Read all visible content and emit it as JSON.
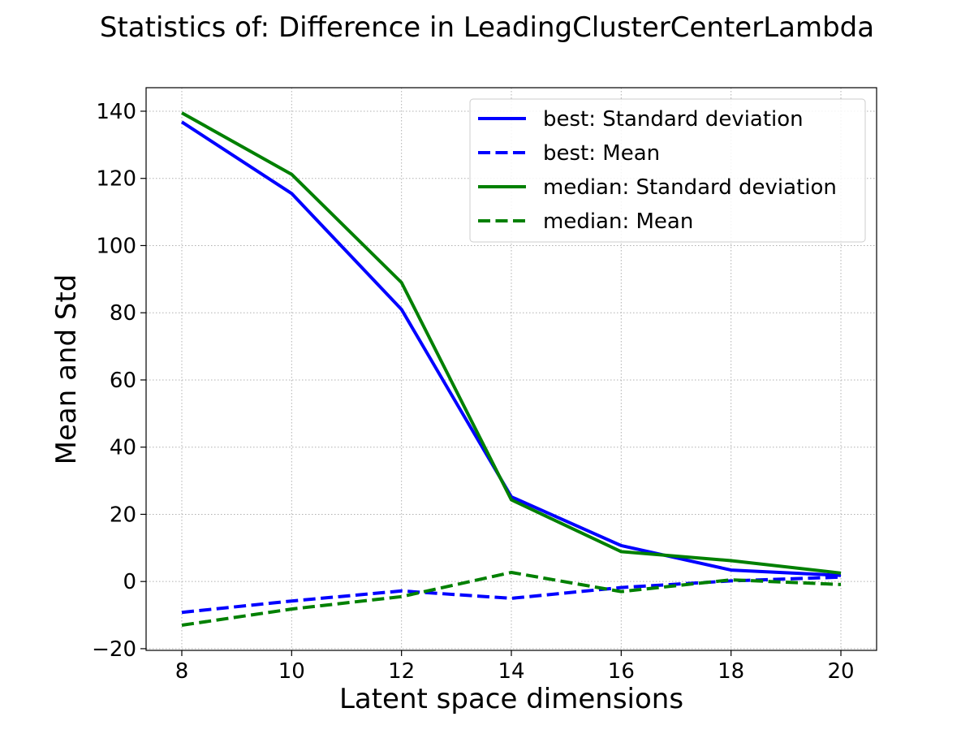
{
  "chart_data": {
    "type": "line",
    "title": "Statistics of: Difference in LeadingClusterCenterLambda",
    "xlabel": "Latent space dimensions",
    "ylabel": "Mean and Std",
    "x": [
      8,
      10,
      12,
      14,
      16,
      18,
      20
    ],
    "xlim": [
      7.35,
      20.65
    ],
    "ylim": [
      -20.5,
      147
    ],
    "xticks": [
      8,
      10,
      12,
      14,
      16,
      18,
      20
    ],
    "xtick_labels": [
      "8",
      "10",
      "12",
      "14",
      "16",
      "18",
      "20"
    ],
    "yticks": [
      -20,
      0,
      20,
      40,
      60,
      80,
      100,
      120,
      140
    ],
    "ytick_labels": [
      "−20",
      "0",
      "20",
      "40",
      "60",
      "80",
      "100",
      "120",
      "140"
    ],
    "grid": true,
    "legend_position": "top-right",
    "series": [
      {
        "name": "best: Standard deviation",
        "color": "#0000ff",
        "linestyle": "solid",
        "values": [
          136.8,
          115.5,
          81.0,
          25.2,
          10.7,
          3.4,
          1.8
        ]
      },
      {
        "name": "best: Mean",
        "color": "#0000ff",
        "linestyle": "dashed",
        "values": [
          -9.2,
          -5.8,
          -2.8,
          -5.0,
          -1.8,
          0.2,
          1.3
        ]
      },
      {
        "name": "median: Standard deviation",
        "color": "#008000",
        "linestyle": "solid",
        "values": [
          139.5,
          121.2,
          89.0,
          24.3,
          8.9,
          6.2,
          2.5
        ]
      },
      {
        "name": "median: Mean",
        "color": "#008000",
        "linestyle": "dashed",
        "values": [
          -13.0,
          -8.2,
          -4.5,
          2.7,
          -3.0,
          0.5,
          -0.9
        ]
      }
    ]
  }
}
